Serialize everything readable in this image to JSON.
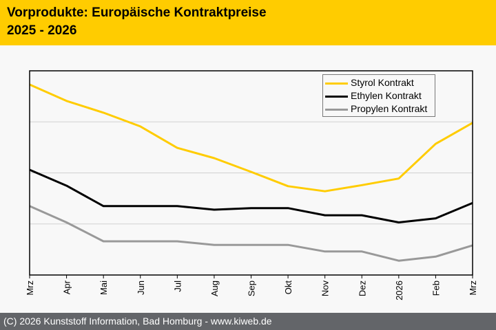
{
  "header": {
    "title": "Vorprodukte: Europäische Kontraktpreise",
    "subtitle": "2025 - 2026",
    "background": "#ffcc00"
  },
  "footer": {
    "text": "(C) 2026 Kunststoff Information, Bad Homburg - www.kiweb.de",
    "background": "#636569"
  },
  "chart_data": {
    "type": "line",
    "title": "Vorprodukte: Europäische Kontraktpreise",
    "subtitle": "2025 - 2026",
    "xlabel": "",
    "ylabel": "",
    "categories": [
      "Mrz",
      "Apr",
      "Mai",
      "Jun",
      "Jul",
      "Aug",
      "Sep",
      "Okt",
      "Nov",
      "Dez",
      "2026",
      "Feb",
      "Mrz"
    ],
    "ylim": [
      0,
      4
    ],
    "y_unit_note": "relative scale; no y-axis tick labels shown",
    "gridlines_y": [
      1,
      2,
      3
    ],
    "grid": true,
    "legend_position": "top-right",
    "series": [
      {
        "name": "Styrol Kontrakt",
        "color": "#ffcc00",
        "values": [
          3.73,
          3.41,
          3.18,
          2.91,
          2.49,
          2.29,
          2.02,
          1.74,
          1.64,
          1.76,
          1.89,
          2.57,
          2.98
        ]
      },
      {
        "name": "Ethylen Kontrakt",
        "color": "#000000",
        "values": [
          2.06,
          1.75,
          1.35,
          1.35,
          1.35,
          1.28,
          1.31,
          1.31,
          1.17,
          1.17,
          1.03,
          1.11,
          1.41
        ]
      },
      {
        "name": "Propylen Kontrakt",
        "color": "#999999",
        "values": [
          1.35,
          1.03,
          0.66,
          0.66,
          0.66,
          0.59,
          0.59,
          0.59,
          0.46,
          0.46,
          0.28,
          0.36,
          0.58
        ]
      }
    ]
  }
}
